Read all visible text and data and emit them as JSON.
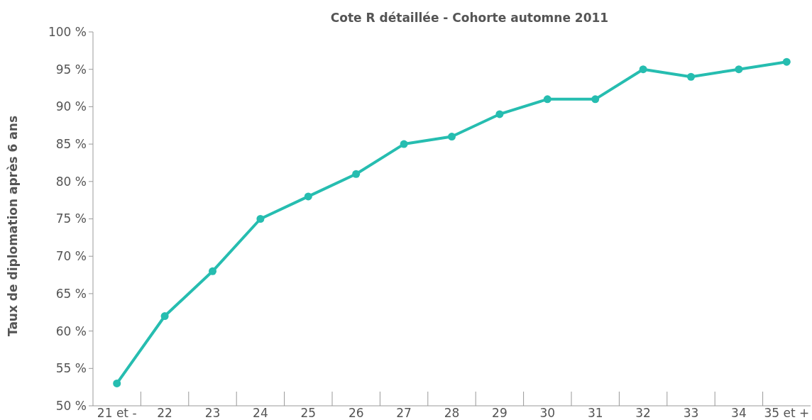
{
  "chart_data": {
    "type": "line",
    "title": "Cote R détaillée - Cohorte automne 2011",
    "ylabel": "Taux de diplomation après 6 ans",
    "categories": [
      "21 et -",
      "22",
      "23",
      "24",
      "25",
      "26",
      "27",
      "28",
      "29",
      "30",
      "31",
      "32",
      "33",
      "34",
      "35 et +"
    ],
    "series": [
      {
        "color": "#26bdb0",
        "values": [
          53,
          62,
          68,
          75,
          78,
          81,
          85,
          86,
          89,
          91,
          91,
          95,
          94,
          95,
          96
        ]
      }
    ],
    "ylim": [
      50,
      100
    ],
    "yticks": [
      {
        "value": 50,
        "label": "50 %"
      },
      {
        "value": 55,
        "label": "55 %"
      },
      {
        "value": 60,
        "label": "60 %"
      },
      {
        "value": 65,
        "label": "65 %"
      },
      {
        "value": 70,
        "label": "70 %"
      },
      {
        "value": 75,
        "label": "75 %"
      },
      {
        "value": 80,
        "label": "80 %"
      },
      {
        "value": 85,
        "label": "85 %"
      },
      {
        "value": 90,
        "label": "90 %"
      },
      {
        "value": 95,
        "label": "95 %"
      },
      {
        "value": 100,
        "label": "100 %"
      }
    ],
    "marker": "circle",
    "line_style": "solid",
    "grid": false
  }
}
